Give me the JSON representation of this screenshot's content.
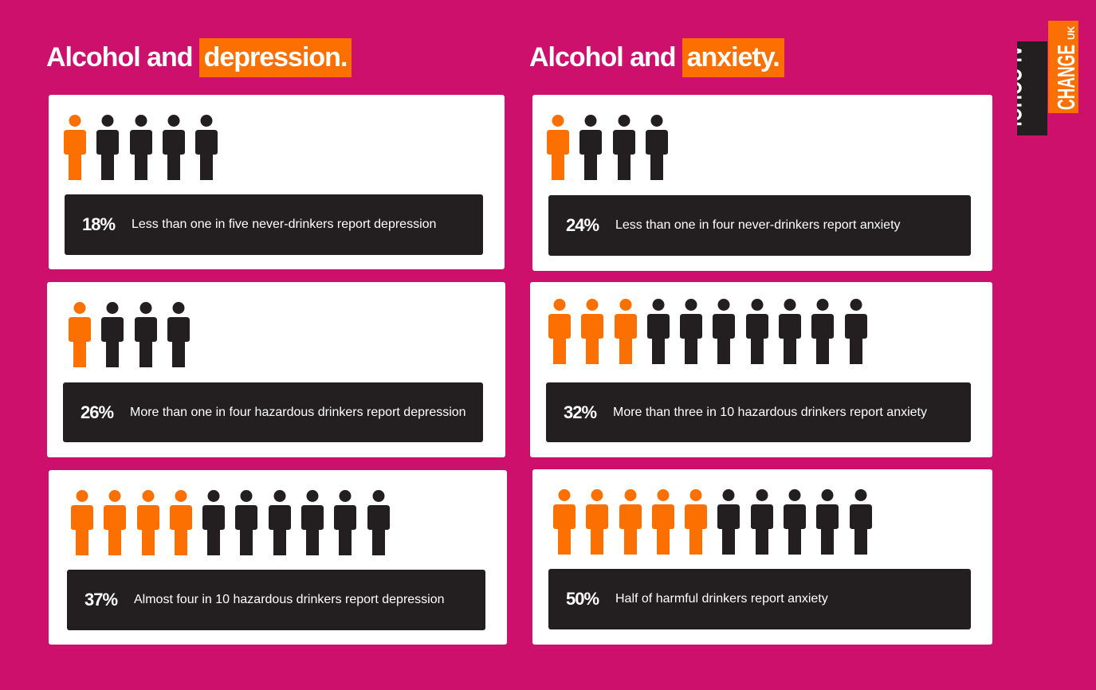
{
  "colors": {
    "background": "#cc106b",
    "accent": "#fb7000",
    "dark": "#231f20",
    "card": "#ffffff"
  },
  "depression": {
    "title_prefix": "Alcohol and",
    "title_highlight": "depression.",
    "cards": [
      {
        "orange": 1,
        "total": 5,
        "pct": "18%",
        "text": "Less than one in five never-drinkers report depression"
      },
      {
        "orange": 1,
        "total": 4,
        "pct": "26%",
        "text": "More than one in four hazardous drinkers report depression"
      },
      {
        "orange": 4,
        "total": 10,
        "pct": "37%",
        "text": "Almost four in 10 hazardous drinkers report depression"
      }
    ]
  },
  "anxiety": {
    "title_prefix": "Alcohol and",
    "title_highlight": "anxiety.",
    "cards": [
      {
        "orange": 1,
        "total": 4,
        "pct": "24%",
        "text": "Less than one in four never-drinkers report anxiety"
      },
      {
        "orange": 3,
        "total": 10,
        "pct": "32%",
        "text": "More than three in 10 hazardous drinkers report anxiety"
      },
      {
        "orange": 5,
        "total": 10,
        "pct": "50%",
        "text": "Half of harmful drinkers report anxiety"
      }
    ]
  },
  "logo": {
    "word1": "ALCOHOL",
    "word2": "CHANGE",
    "suffix": "UK"
  }
}
